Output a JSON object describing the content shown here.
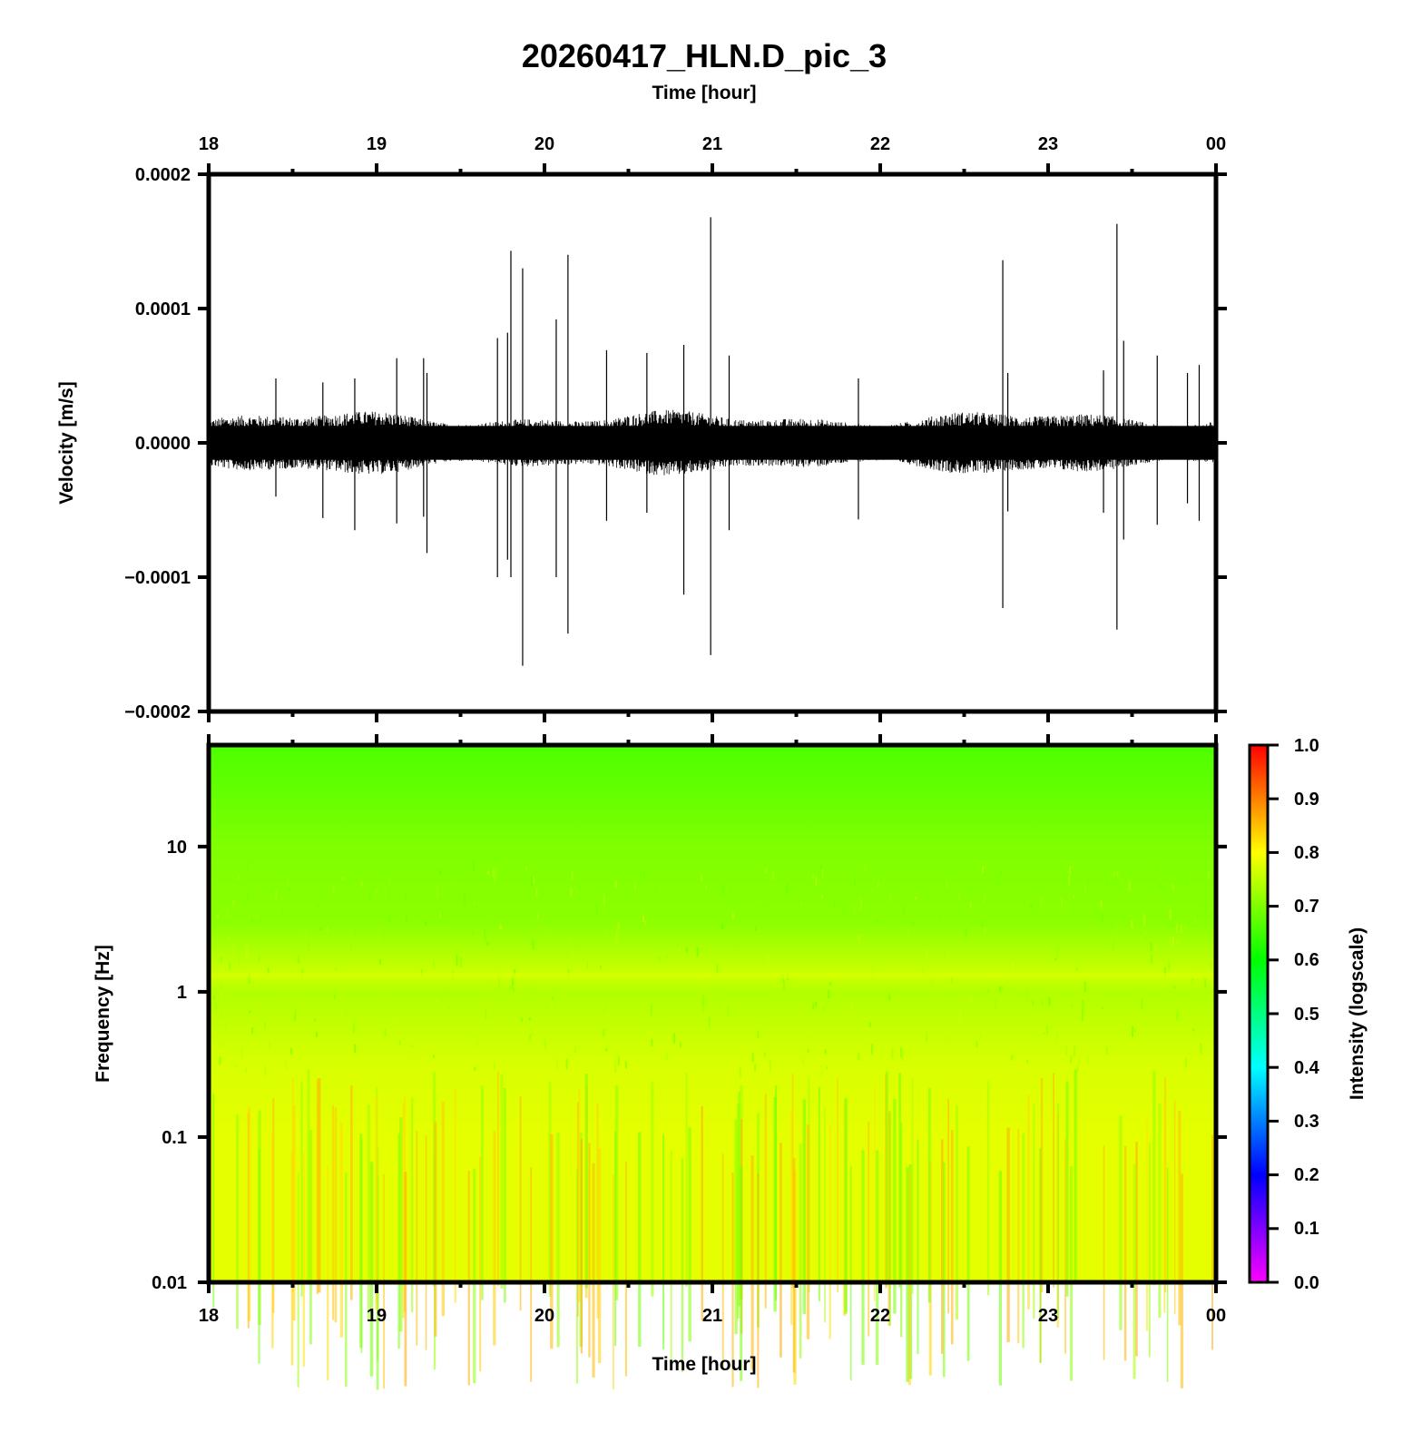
{
  "chart_data": [
    {
      "type": "line",
      "title": "20260417_HLN.D_pic_3",
      "xlabel": "Time [hour]",
      "ylabel": "Velocity [m/s]",
      "x_ticks": [
        "18",
        "19",
        "20",
        "21",
        "22",
        "23",
        "00"
      ],
      "xlim": [
        18,
        24
      ],
      "y_ticks": [
        "0.0002",
        "0.0001",
        "0.0000",
        "−0.0001",
        "−0.0002"
      ],
      "ylim": [
        -0.0002,
        0.0002
      ],
      "noise_band": [
        -3e-05,
        3e-05
      ],
      "series": [
        {
          "color": "#000000",
          "spikes": [
            {
              "x": 18.4,
              "up": 4.8e-05,
              "down": -4e-05
            },
            {
              "x": 18.68,
              "up": 4.5e-05,
              "down": -5.6e-05
            },
            {
              "x": 18.87,
              "up": 4.8e-05,
              "down": -6.5e-05
            },
            {
              "x": 19.12,
              "up": 6.3e-05,
              "down": -6e-05
            },
            {
              "x": 19.28,
              "up": 6.3e-05,
              "down": -5.5e-05
            },
            {
              "x": 19.3,
              "up": 5.2e-05,
              "down": -8.2e-05
            },
            {
              "x": 19.72,
              "up": 7.8e-05,
              "down": -0.0001
            },
            {
              "x": 19.78,
              "up": 8.2e-05,
              "down": -8.7e-05
            },
            {
              "x": 19.8,
              "up": 0.000143,
              "down": -0.0001
            },
            {
              "x": 19.87,
              "up": 0.00013,
              "down": -0.000166
            },
            {
              "x": 20.07,
              "up": 9.2e-05,
              "down": -0.0001
            },
            {
              "x": 20.14,
              "up": 0.00014,
              "down": -0.000142
            },
            {
              "x": 20.37,
              "up": 6.9e-05,
              "down": -5.8e-05
            },
            {
              "x": 20.61,
              "up": 6.7e-05,
              "down": -5.2e-05
            },
            {
              "x": 20.83,
              "up": 7.3e-05,
              "down": -0.000113
            },
            {
              "x": 20.99,
              "up": 0.000168,
              "down": -0.000158
            },
            {
              "x": 21.1,
              "up": 6.5e-05,
              "down": -6.5e-05
            },
            {
              "x": 21.87,
              "up": 4.8e-05,
              "down": -5.7e-05
            },
            {
              "x": 22.73,
              "up": 0.000136,
              "down": -0.000123
            },
            {
              "x": 22.76,
              "up": 5.2e-05,
              "down": -5.1e-05
            },
            {
              "x": 23.33,
              "up": 5.4e-05,
              "down": -5.2e-05
            },
            {
              "x": 23.41,
              "up": 0.000163,
              "down": -0.000139
            },
            {
              "x": 23.45,
              "up": 7.6e-05,
              "down": -7.2e-05
            },
            {
              "x": 23.65,
              "up": 6.5e-05,
              "down": -6.1e-05
            },
            {
              "x": 23.83,
              "up": 5.2e-05,
              "down": -4.5e-05
            },
            {
              "x": 23.9,
              "up": 5.8e-05,
              "down": -5.8e-05
            }
          ]
        }
      ]
    },
    {
      "type": "heatmap",
      "xlabel": "Time [hour]",
      "ylabel": "Frequency [Hz]",
      "x_ticks": [
        "18",
        "19",
        "20",
        "21",
        "22",
        "23",
        "00"
      ],
      "xlim": [
        18,
        24
      ],
      "y_scale": "log",
      "y_ticks": [
        "10",
        "1",
        "0.1",
        "0.01"
      ],
      "ylim": [
        0.01,
        50
      ],
      "colormap": "rainbow (magenta to red)",
      "colorbar": {
        "label": "Intensity (logscale)",
        "ticks": [
          "1.0",
          "0.9",
          "0.8",
          "0.7",
          "0.6",
          "0.5",
          "0.4",
          "0.3",
          "0.2",
          "0.1",
          "0.0"
        ],
        "range": [
          0,
          1
        ]
      },
      "intensity_by_frequency": [
        {
          "hz": 50,
          "intensity": 0.66
        },
        {
          "hz": 10,
          "intensity": 0.7
        },
        {
          "hz": 3,
          "intensity": 0.71
        },
        {
          "hz": 1.3,
          "intensity": 0.76
        },
        {
          "hz": 1,
          "intensity": 0.74
        },
        {
          "hz": 0.3,
          "intensity": 0.77
        },
        {
          "hz": 0.1,
          "intensity": 0.78
        },
        {
          "hz": 0.01,
          "intensity": 0.78
        }
      ]
    }
  ]
}
